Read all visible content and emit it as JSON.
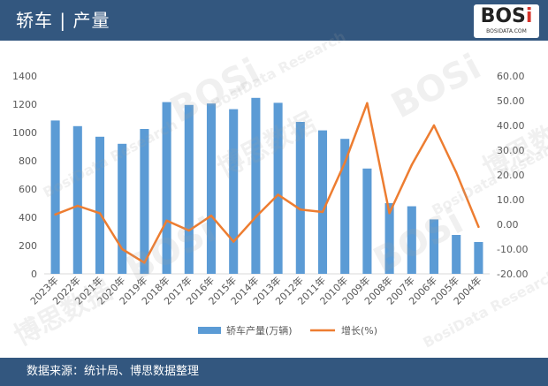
{
  "header": {
    "title": "轿车 | 产量"
  },
  "logo": {
    "text_main": "BOSi",
    "text_sub": "BOSIDATA.COM"
  },
  "footer": {
    "source": "数据来源：统计局、博思数据整理"
  },
  "colors": {
    "header_bg": "#33577f",
    "bar": "#5b9bd5",
    "line": "#ed7d31",
    "axis_text": "#595959",
    "grid": "#d9d9d9"
  },
  "watermarks": [
    "BOSi",
    "博思数据",
    "BosiData Research"
  ],
  "chart_data": {
    "type": "bar",
    "categories": [
      "2023年",
      "2022年",
      "2021年",
      "2020年",
      "2019年",
      "2018年",
      "2017年",
      "2016年",
      "2015年",
      "2014年",
      "2013年",
      "2012年",
      "2011年",
      "2010年",
      "2009年",
      "2008年",
      "2007年",
      "2006年",
      "2005年",
      "2004年"
    ],
    "series": [
      {
        "name": "轿车产量(万辆)",
        "type": "bar",
        "axis": "left",
        "values": [
          1085,
          1045,
          970,
          920,
          1025,
          1215,
          1195,
          1205,
          1165,
          1245,
          1210,
          1075,
          1015,
          955,
          745,
          500,
          478,
          385,
          275,
          225
        ]
      },
      {
        "name": "增长(%)",
        "type": "line",
        "axis": "right",
        "values": [
          4.0,
          7.5,
          4.5,
          -10.0,
          -15.5,
          1.5,
          -2.5,
          3.5,
          -7.0,
          3.0,
          12.0,
          6.0,
          5.0,
          25.0,
          49.0,
          4.5,
          24.0,
          40.0,
          21.0,
          -1.0
        ]
      }
    ],
    "ylim_left": [
      0,
      1400
    ],
    "yticks_left": [
      "0",
      "200",
      "400",
      "600",
      "800",
      "1000",
      "1200",
      "1400"
    ],
    "ylim_right": [
      -20,
      60
    ],
    "yticks_right": [
      "-20.00",
      "-10.00",
      "0.00",
      "10.00",
      "20.00",
      "30.00",
      "40.00",
      "50.00",
      "60.00"
    ],
    "grid": false,
    "legend_position": "bottom"
  }
}
